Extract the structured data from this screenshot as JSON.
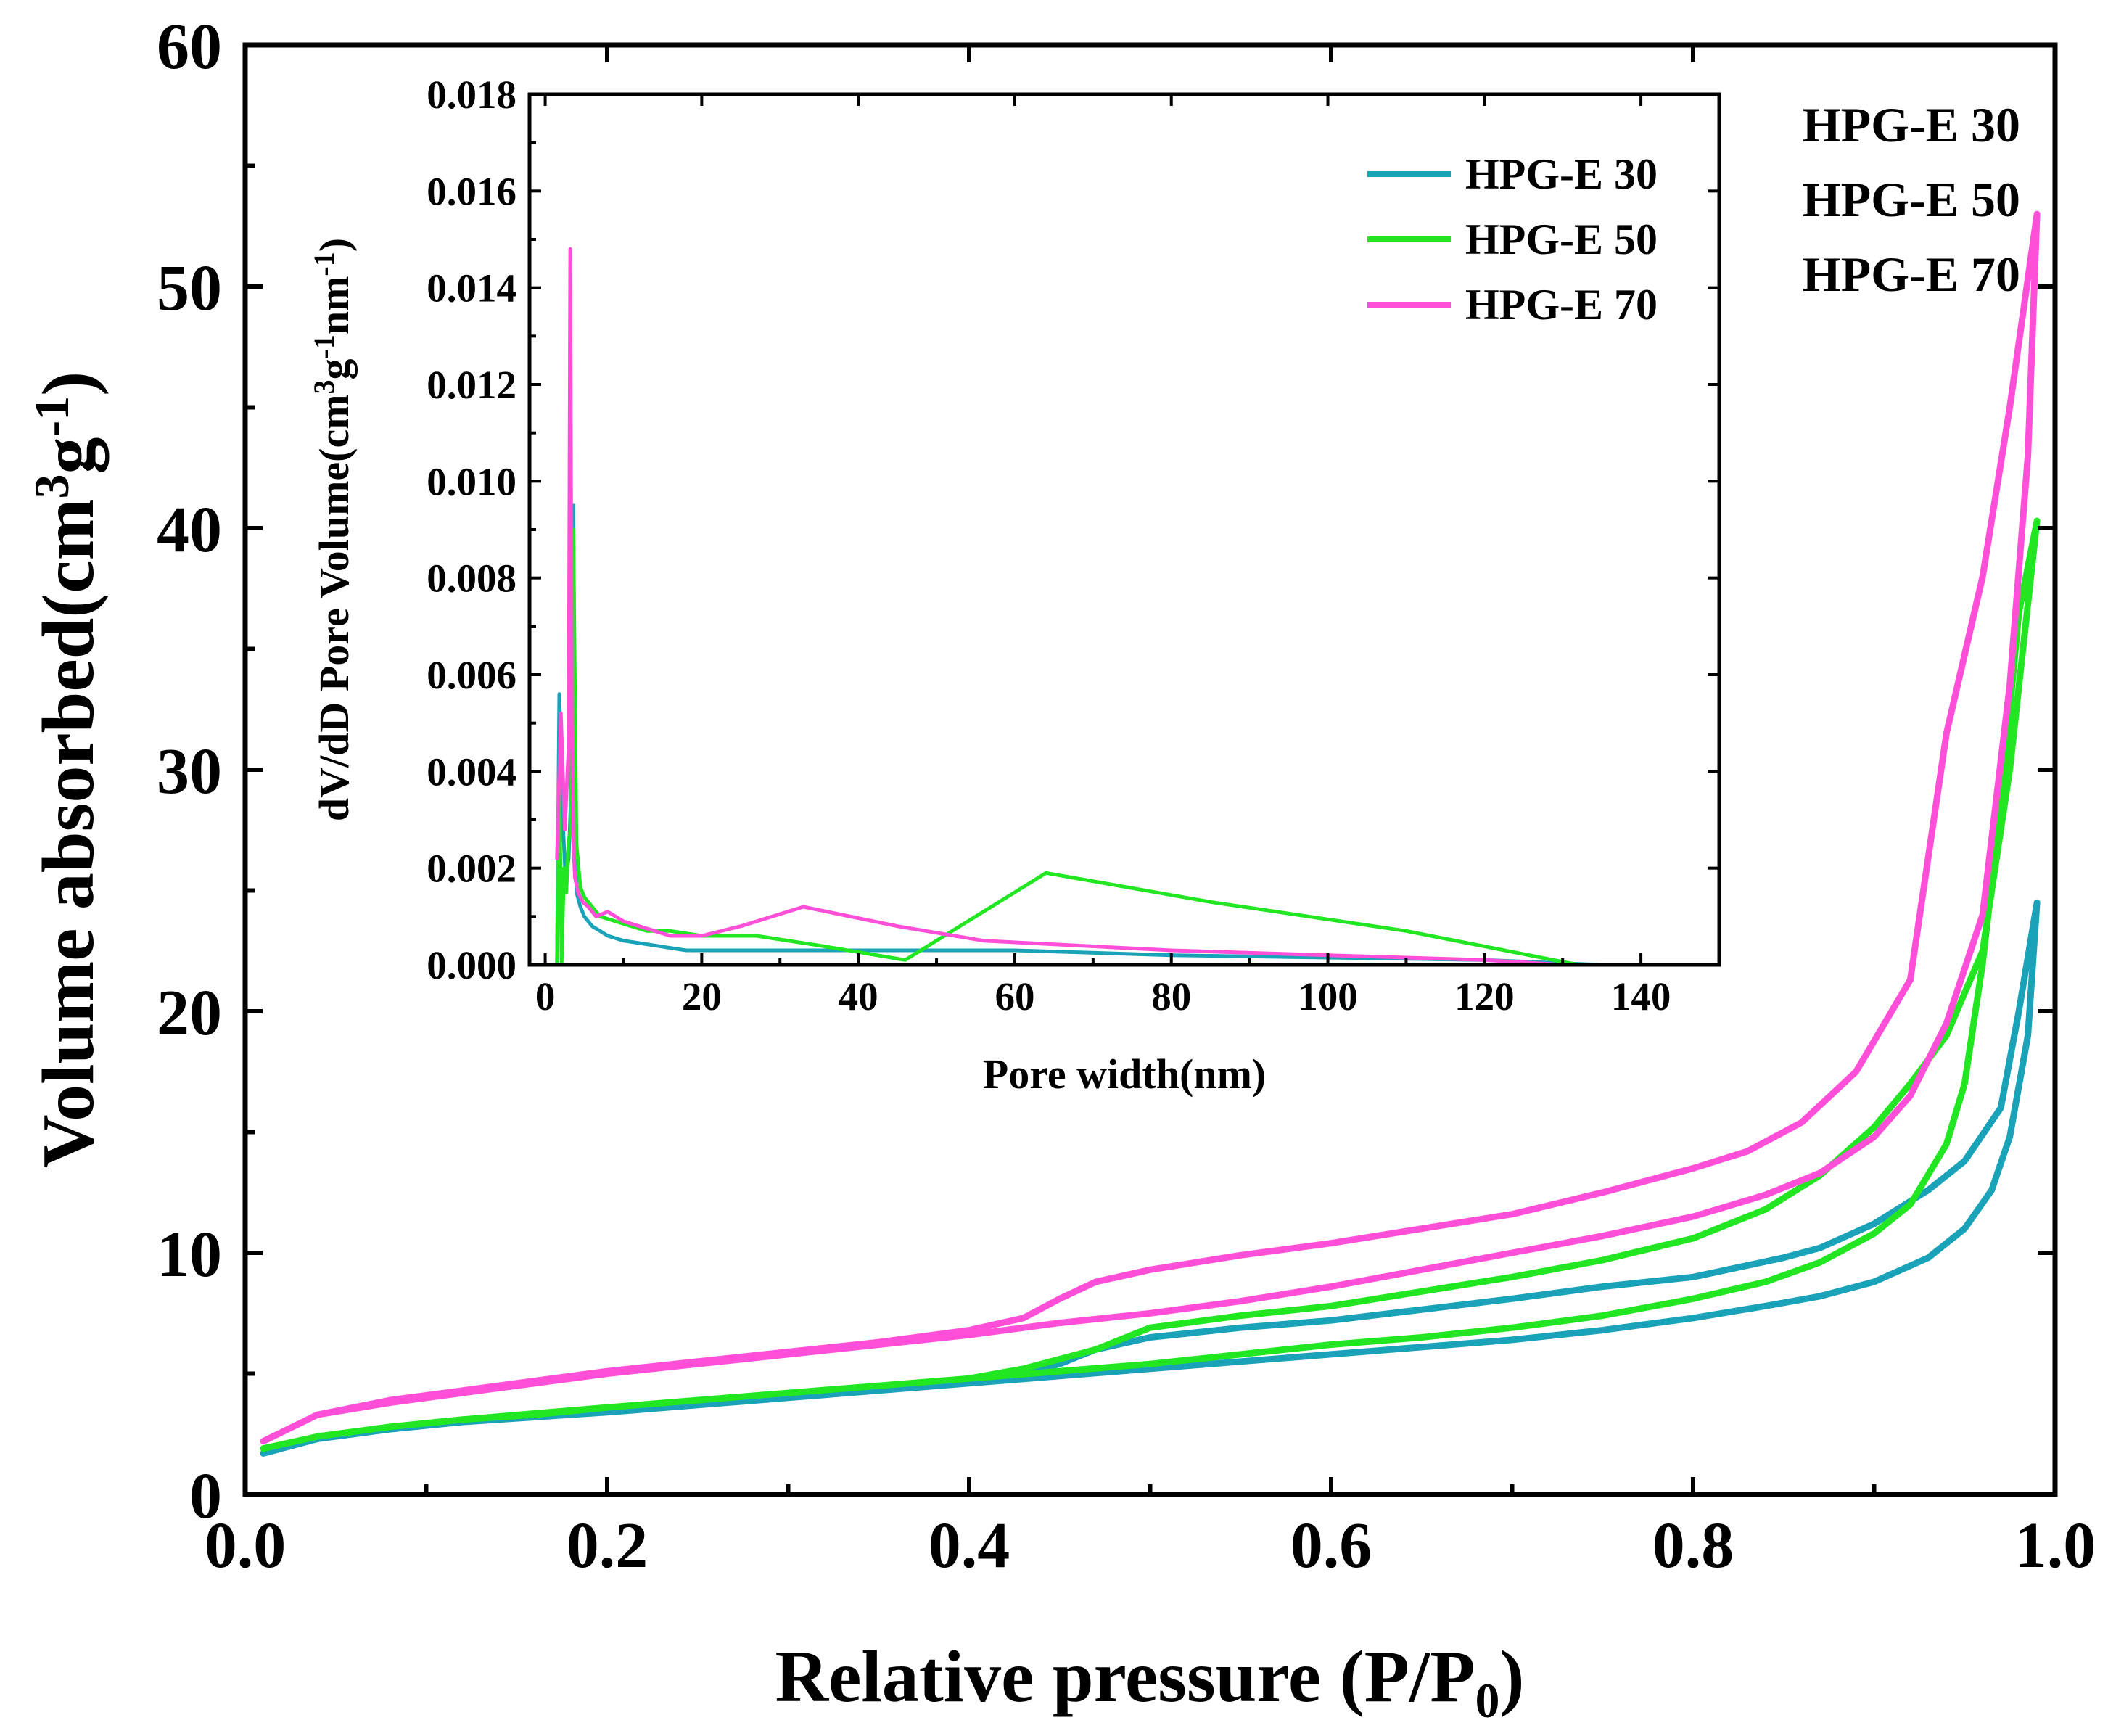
{
  "colors": {
    "HPG-E 30": "#1aa3b8",
    "HPG-E 50": "#22e622",
    "HPG-E 70": "#ff4fd8"
  },
  "chart_data": [
    {
      "type": "line",
      "xlabel": "Relative pressure (P/P",
      "xlabel_sub": "0",
      "xlabel_end": ")",
      "ylabel": "Volume absorbed(cm",
      "ylabel_sup1": "3",
      "ylabel_mid": "g",
      "ylabel_sup2": "-1",
      "ylabel_end": ")",
      "xlim": [
        0.0,
        1.0
      ],
      "ylim": [
        0,
        60
      ],
      "xticks": [
        "0.0",
        "0.2",
        "0.4",
        "0.6",
        "0.8",
        "1.0"
      ],
      "yticks": [
        "0",
        "10",
        "20",
        "30",
        "40",
        "50",
        "60"
      ],
      "labels": [
        "HPG-E 30",
        "HPG-E 50",
        "HPG-E 70"
      ],
      "series": [
        {
          "name": "HPG-E 30",
          "x": [
            0.01,
            0.04,
            0.08,
            0.12,
            0.16,
            0.2,
            0.25,
            0.3,
            0.35,
            0.4,
            0.45,
            0.5,
            0.55,
            0.6,
            0.65,
            0.7,
            0.75,
            0.8,
            0.84,
            0.87,
            0.9,
            0.93,
            0.95,
            0.965,
            0.975,
            0.985,
            0.99,
            0.98,
            0.97,
            0.95,
            0.93,
            0.9,
            0.87,
            0.85,
            0.8,
            0.75,
            0.7,
            0.6,
            0.55,
            0.5,
            0.47,
            0.45,
            0.43,
            0.4,
            0.35,
            0.3,
            0.25,
            0.2,
            0.12,
            0.08,
            0.04,
            0.01
          ],
          "y": [
            1.7,
            2.3,
            2.7,
            3.0,
            3.2,
            3.4,
            3.7,
            4.0,
            4.3,
            4.6,
            4.9,
            5.2,
            5.5,
            5.8,
            6.1,
            6.4,
            6.8,
            7.3,
            7.8,
            8.2,
            8.8,
            9.8,
            11.0,
            12.6,
            14.8,
            19.0,
            24.5,
            20.0,
            16.0,
            13.8,
            12.6,
            11.2,
            10.2,
            9.8,
            9.0,
            8.6,
            8.1,
            7.2,
            6.9,
            6.5,
            6.0,
            5.4,
            5.0,
            4.6,
            4.3,
            4.0,
            3.7,
            3.4,
            3.0,
            2.7,
            2.3,
            1.7
          ]
        },
        {
          "name": "HPG-E 50",
          "x": [
            0.01,
            0.04,
            0.08,
            0.12,
            0.16,
            0.2,
            0.25,
            0.3,
            0.35,
            0.4,
            0.45,
            0.5,
            0.55,
            0.6,
            0.65,
            0.7,
            0.75,
            0.8,
            0.84,
            0.87,
            0.9,
            0.92,
            0.94,
            0.95,
            0.96,
            0.97,
            0.98,
            0.99,
            0.975,
            0.96,
            0.94,
            0.92,
            0.9,
            0.87,
            0.84,
            0.8,
            0.75,
            0.7,
            0.6,
            0.55,
            0.5,
            0.47,
            0.43,
            0.4,
            0.35,
            0.3,
            0.25,
            0.2,
            0.12,
            0.08,
            0.04,
            0.01
          ],
          "y": [
            1.9,
            2.4,
            2.8,
            3.1,
            3.3,
            3.6,
            3.9,
            4.2,
            4.5,
            4.8,
            5.1,
            5.4,
            5.8,
            6.2,
            6.5,
            6.9,
            7.4,
            8.1,
            8.8,
            9.6,
            10.8,
            12.0,
            14.5,
            17.0,
            22.0,
            28.5,
            36.5,
            40.3,
            30.0,
            22.5,
            19.0,
            17.0,
            15.2,
            13.2,
            11.8,
            10.6,
            9.7,
            9.0,
            7.8,
            7.4,
            6.9,
            6.0,
            5.2,
            4.8,
            4.5,
            4.2,
            3.9,
            3.6,
            3.1,
            2.8,
            2.4,
            1.9
          ]
        },
        {
          "name": "HPG-E 70",
          "x": [
            0.01,
            0.04,
            0.08,
            0.12,
            0.16,
            0.2,
            0.25,
            0.3,
            0.35,
            0.4,
            0.45,
            0.5,
            0.55,
            0.6,
            0.65,
            0.7,
            0.75,
            0.8,
            0.84,
            0.87,
            0.9,
            0.92,
            0.94,
            0.96,
            0.975,
            0.985,
            0.99,
            0.975,
            0.96,
            0.94,
            0.92,
            0.89,
            0.86,
            0.83,
            0.8,
            0.75,
            0.7,
            0.65,
            0.6,
            0.55,
            0.5,
            0.47,
            0.45,
            0.43,
            0.4,
            0.35,
            0.3,
            0.25,
            0.2,
            0.12,
            0.08,
            0.04,
            0.01
          ],
          "y": [
            2.2,
            3.3,
            3.8,
            4.2,
            4.6,
            5.0,
            5.4,
            5.8,
            6.2,
            6.6,
            7.1,
            7.5,
            8.0,
            8.6,
            9.3,
            10.0,
            10.7,
            11.5,
            12.4,
            13.3,
            14.8,
            16.5,
            19.5,
            24.0,
            33.5,
            43.0,
            53.0,
            45.0,
            38.0,
            31.5,
            21.3,
            17.5,
            15.4,
            14.2,
            13.5,
            12.5,
            11.6,
            11.0,
            10.4,
            9.9,
            9.3,
            8.8,
            8.1,
            7.3,
            6.8,
            6.3,
            5.9,
            5.5,
            5.1,
            4.3,
            3.9,
            3.3,
            2.2
          ]
        }
      ]
    },
    {
      "type": "line",
      "xlabel": "Pore width(nm)",
      "ylabel": "dV/dD Pore Volume(cm",
      "ylabel_sup1": "3",
      "ylabel_mid1": "g",
      "ylabel_sup2": "-1",
      "ylabel_mid2": "nm",
      "ylabel_sup3": "-1",
      "ylabel_end": ")",
      "xlim": [
        -2,
        150
      ],
      "ylim": [
        0,
        0.018
      ],
      "xticks": [
        "0",
        "20",
        "40",
        "60",
        "80",
        "100",
        "120",
        "140"
      ],
      "yticks": [
        "0.000",
        "0.002",
        "0.004",
        "0.006",
        "0.008",
        "0.010",
        "0.012",
        "0.014",
        "0.016",
        "0.018"
      ],
      "legend": "top-right",
      "series": [
        {
          "name": "HPG-E 30",
          "x": [
            1.5,
            1.8,
            2.0,
            2.3,
            2.6,
            3.0,
            3.3,
            3.6,
            3.8,
            4.0,
            4.5,
            5.0,
            6.0,
            7.0,
            8.0,
            10.0,
            12.0,
            14.0,
            18.0,
            25.0,
            40.0,
            60.0,
            80.0,
            100.0,
            120.0,
            135.0
          ],
          "y": [
            0.0,
            0.0056,
            0.0045,
            0.0028,
            0.0018,
            0.0022,
            0.0035,
            0.0095,
            0.0035,
            0.0015,
            0.0012,
            0.001,
            0.0008,
            0.0007,
            0.0006,
            0.0005,
            0.00045,
            0.0004,
            0.0003,
            0.0003,
            0.0003,
            0.0003,
            0.0002,
            0.00015,
            0.0001,
            0.0
          ]
        },
        {
          "name": "HPG-E 50",
          "x": [
            1.5,
            1.8,
            2.1,
            2.4,
            2.7,
            3.0,
            3.3,
            3.6,
            4.0,
            4.5,
            5.0,
            6.0,
            7.0,
            9.0,
            11.0,
            13.0,
            16.0,
            20.0,
            27.0,
            35.0,
            46.0,
            64.0,
            85.0,
            110.0,
            132.0
          ],
          "y": [
            0.0,
            0.004,
            0.0,
            0.002,
            0.0015,
            0.0026,
            0.0028,
            0.009,
            0.0025,
            0.0016,
            0.0014,
            0.0012,
            0.001,
            0.0009,
            0.0008,
            0.0007,
            0.0007,
            0.0006,
            0.0006,
            0.0004,
            0.0001,
            0.0019,
            0.0013,
            0.0007,
            0.0
          ]
        },
        {
          "name": "HPG-E 70",
          "x": [
            1.5,
            2.0,
            2.5,
            3.0,
            3.2,
            3.4,
            3.6,
            3.8,
            4.2,
            4.8,
            5.5,
            6.5,
            8.0,
            10.0,
            12.0,
            14.0,
            16.0,
            20.0,
            25.0,
            33.0,
            45.0,
            56.0,
            80.0,
            100.0,
            120.0,
            130.0
          ],
          "y": [
            0.0022,
            0.0052,
            0.0028,
            0.0045,
            0.0148,
            0.005,
            0.0025,
            0.0018,
            0.0015,
            0.0013,
            0.0012,
            0.001,
            0.0011,
            0.0009,
            0.0008,
            0.0007,
            0.0006,
            0.0006,
            0.0008,
            0.0012,
            0.0008,
            0.0005,
            0.0003,
            0.0002,
            0.0001,
            0.0
          ]
        }
      ]
    }
  ]
}
